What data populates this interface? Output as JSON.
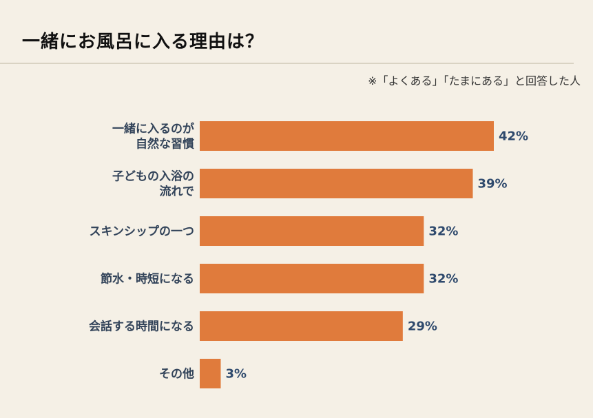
{
  "header": {
    "title": "一緒にお風呂に入る理由は？",
    "note": "※「よくある」「たまにある」と回答した人"
  },
  "colors": {
    "bar": "#e07b3c",
    "background": "#f5f0e6",
    "label": "#33445a",
    "value": "#2f4a6d"
  },
  "chart_data": {
    "type": "bar",
    "orientation": "horizontal",
    "categories": [
      [
        "一緒に入るのが",
        "自然な習慣"
      ],
      [
        "子どもの入浴の",
        "流れで"
      ],
      [
        "スキンシップの一つ"
      ],
      [
        "節水・時短になる"
      ],
      [
        "会話する時間になる"
      ],
      [
        "その他"
      ]
    ],
    "values": [
      42,
      39,
      32,
      32,
      29,
      3
    ],
    "value_labels": [
      "42%",
      "39%",
      "32%",
      "32%",
      "29%",
      "3%"
    ],
    "unit": "%",
    "xlim": [
      0,
      42
    ],
    "grid": false,
    "legend": "none"
  }
}
